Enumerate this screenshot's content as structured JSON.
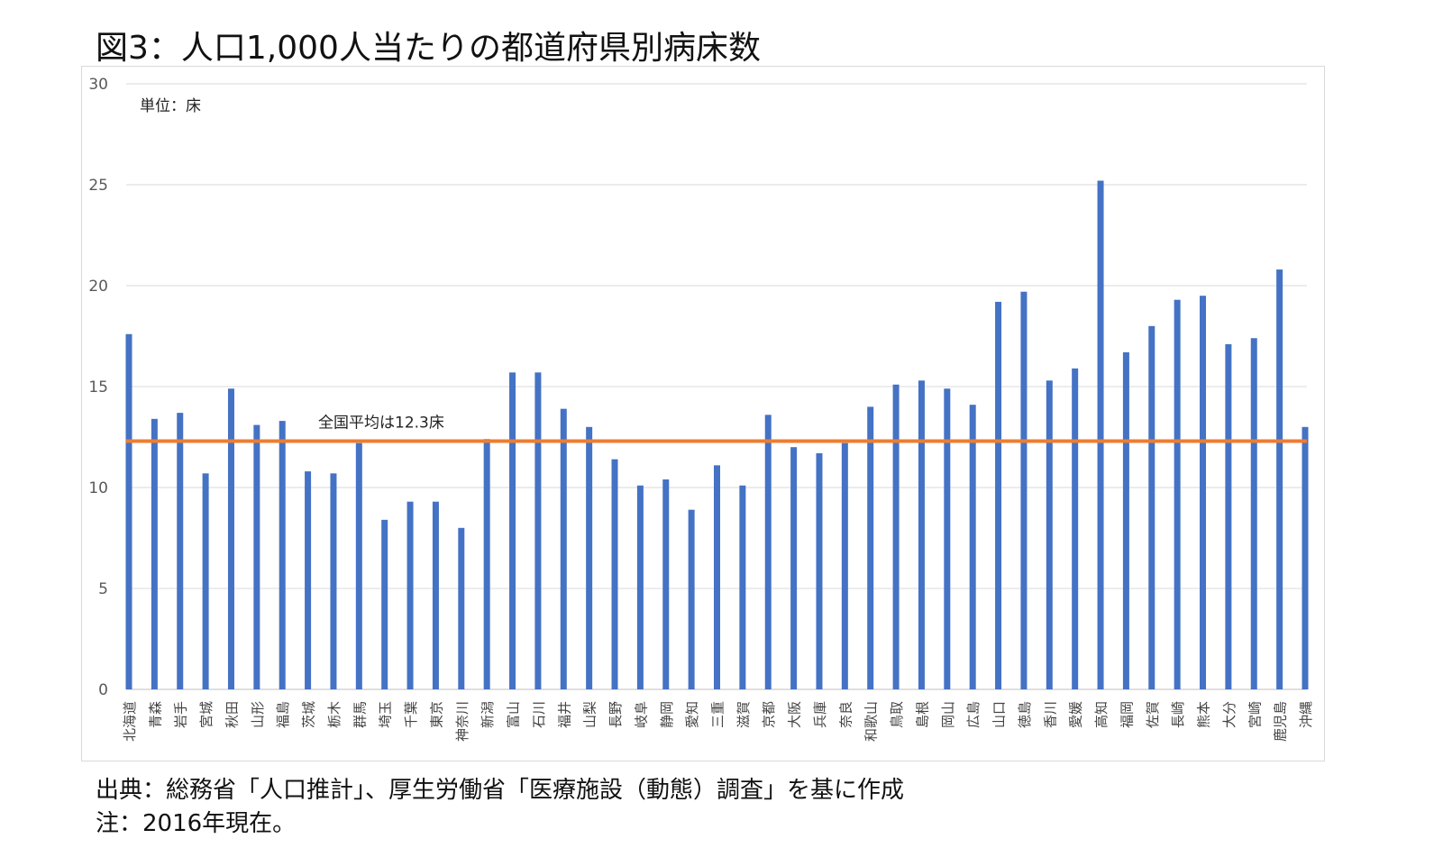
{
  "title": "図3：人口1,000人当たりの都道府県別病床数",
  "source": "出典：総務省「人口推計」、厚生労働省「医療施設（動態）調査」を基に作成",
  "note": "注：2016年現在。",
  "chart_data": {
    "type": "bar",
    "title": "図3：人口1,000人当たりの都道府県別病床数",
    "unit_label": "単位：床",
    "xlabel": "",
    "ylabel": "",
    "ylim": [
      0,
      30
    ],
    "yticks": [
      0,
      5,
      10,
      15,
      20,
      25,
      30
    ],
    "grid": true,
    "bar_color": "#4472c4",
    "categories": [
      "北海道",
      "青森",
      "岩手",
      "宮城",
      "秋田",
      "山形",
      "福島",
      "茨城",
      "栃木",
      "群馬",
      "埼玉",
      "千葉",
      "東京",
      "神奈川",
      "新潟",
      "富山",
      "石川",
      "福井",
      "山梨",
      "長野",
      "岐阜",
      "静岡",
      "愛知",
      "三重",
      "滋賀",
      "京都",
      "大阪",
      "兵庫",
      "奈良",
      "和歌山",
      "鳥取",
      "島根",
      "岡山",
      "広島",
      "山口",
      "徳島",
      "香川",
      "愛媛",
      "高知",
      "福岡",
      "佐賀",
      "長崎",
      "熊本",
      "大分",
      "宮崎",
      "鹿児島",
      "沖縄"
    ],
    "values": [
      17.6,
      13.4,
      13.7,
      10.7,
      14.9,
      13.1,
      13.3,
      10.8,
      10.7,
      12.2,
      8.4,
      9.3,
      9.3,
      8.0,
      12.4,
      15.7,
      15.7,
      13.9,
      13.0,
      11.4,
      10.1,
      10.4,
      8.9,
      11.1,
      10.1,
      13.6,
      12.0,
      11.7,
      12.2,
      14.0,
      15.1,
      15.3,
      14.9,
      14.1,
      19.2,
      19.7,
      15.3,
      15.9,
      25.2,
      16.7,
      18.0,
      19.3,
      19.5,
      17.1,
      17.4,
      20.8,
      13.0
    ],
    "reference_line": {
      "value": 12.3,
      "label": "全国平均は12.3床",
      "color": "#ed7d31"
    }
  }
}
